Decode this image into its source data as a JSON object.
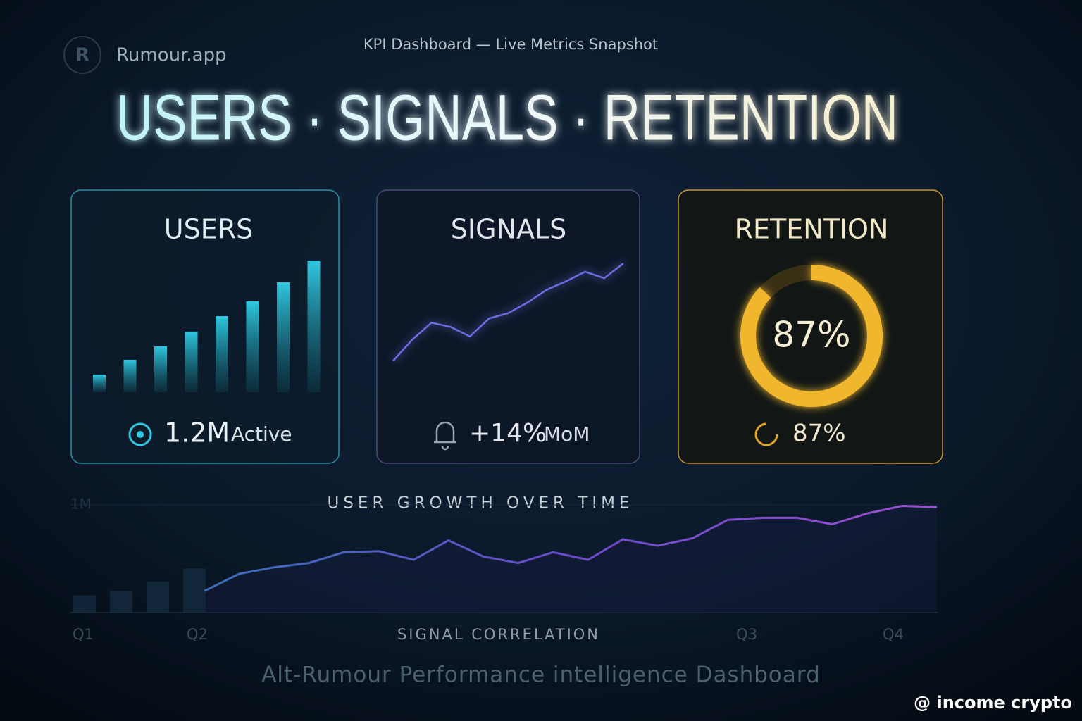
{
  "brand": "Rumour.app",
  "subtitle": "KPI Dashboard — Live Metrics Snapshot",
  "headline": "USERS · SIGNALS · RETENTION",
  "cards": [
    {
      "title": "USERS",
      "bars": [
        25,
        46,
        65,
        86,
        108,
        129,
        156,
        187
      ],
      "stat": "1.2M",
      "stat_unit": "Active"
    },
    {
      "title": "SIGNALS",
      "line": [
        5,
        25,
        41,
        37,
        28,
        45,
        50,
        60,
        72,
        80,
        89,
        83,
        97
      ],
      "stat": "+14%",
      "stat_unit": "MoM"
    },
    {
      "title": "RETENTION",
      "ring": {
        "value": 87,
        "label": "87%"
      },
      "stat": "87%"
    }
  ],
  "growth": {
    "title": "USER GROWTH OVER TIME",
    "yticks": [
      {
        "value": 1,
        "label": "1M"
      }
    ],
    "bars": [
      0.16,
      0.2,
      0.29,
      0.41
    ],
    "line": [
      0.2,
      0.36,
      0.42,
      0.46,
      0.56,
      0.57,
      0.49,
      0.67,
      0.52,
      0.46,
      0.56,
      0.49,
      0.68,
      0.62,
      0.69,
      0.86,
      0.88,
      0.88,
      0.82,
      0.92,
      0.99,
      0.98
    ],
    "x_labels": [
      "Q1",
      "Q2",
      "Q3",
      "Q4"
    ],
    "x_title": "SIGNAL CORRELATION"
  },
  "footer": "Alt-Rumour Performance intelligence Dashboard",
  "watermark": "@ income crypto"
}
